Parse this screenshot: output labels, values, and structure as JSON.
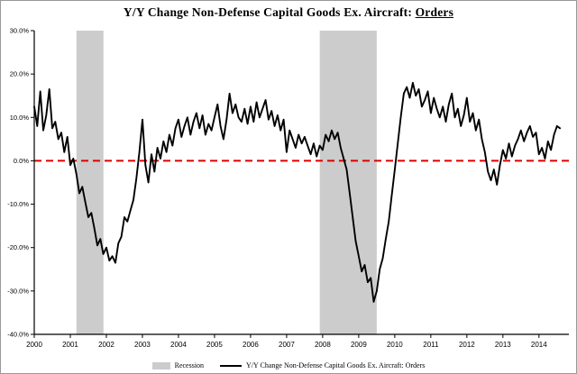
{
  "title": {
    "main": "Y/Y Change Non-Defense Capital Goods Ex. Aircraft: ",
    "underlined": "Orders"
  },
  "legend": {
    "recession_label": "Recession",
    "series_label": "Y/Y Change Non-Defense Capital Goods Ex. Aircraft: Orders"
  },
  "chart_data": {
    "type": "line",
    "title": "Y/Y Change Non-Defense Capital Goods Ex. Aircraft: Orders",
    "xlabel": "",
    "ylabel": "",
    "x_start_year": 2000,
    "x_step_months": 1,
    "values": [
      12.5,
      8.0,
      16.0,
      7.0,
      10.5,
      16.5,
      7.5,
      9.0,
      5.0,
      6.5,
      2.0,
      5.5,
      -1.0,
      0.5,
      -3.0,
      -7.5,
      -6.0,
      -9.5,
      -13.0,
      -12.0,
      -15.5,
      -19.5,
      -18.0,
      -21.5,
      -20.0,
      -23.0,
      -22.0,
      -23.5,
      -19.0,
      -17.5,
      -13.0,
      -14.0,
      -11.5,
      -9.0,
      -4.0,
      2.0,
      9.5,
      -1.0,
      -5.0,
      1.5,
      -2.5,
      3.0,
      0.5,
      4.5,
      2.0,
      6.0,
      3.5,
      7.5,
      9.5,
      5.5,
      8.0,
      10.0,
      6.0,
      9.0,
      11.0,
      7.5,
      10.5,
      6.0,
      8.5,
      7.0,
      10.0,
      13.0,
      8.0,
      5.0,
      9.5,
      15.5,
      11.0,
      13.0,
      10.0,
      9.0,
      12.0,
      8.5,
      12.5,
      9.0,
      13.5,
      10.0,
      12.0,
      14.0,
      9.5,
      11.5,
      8.0,
      10.5,
      7.0,
      9.5,
      2.0,
      7.0,
      5.0,
      3.0,
      6.0,
      4.0,
      5.5,
      3.5,
      1.5,
      4.0,
      1.0,
      3.5,
      2.5,
      6.0,
      4.5,
      7.0,
      5.0,
      6.5,
      3.0,
      0.5,
      -2.0,
      -7.5,
      -13.0,
      -18.5,
      -22.0,
      -25.5,
      -24.0,
      -28.0,
      -27.0,
      -32.5,
      -30.0,
      -25.0,
      -22.5,
      -18.0,
      -14.0,
      -8.0,
      -2.0,
      4.0,
      10.0,
      15.5,
      17.0,
      14.5,
      18.0,
      15.0,
      16.5,
      12.5,
      14.0,
      16.0,
      11.0,
      14.5,
      12.0,
      10.0,
      12.5,
      9.0,
      13.0,
      15.5,
      10.0,
      12.0,
      8.0,
      10.5,
      14.5,
      9.0,
      11.0,
      7.0,
      9.5,
      5.0,
      2.0,
      -2.5,
      -4.5,
      -2.0,
      -5.5,
      -1.0,
      2.5,
      0.5,
      4.0,
      1.0,
      3.5,
      5.0,
      7.0,
      4.5,
      6.5,
      8.0,
      5.5,
      6.5,
      1.5,
      3.0,
      0.5,
      4.5,
      2.5,
      6.0,
      8.0,
      7.5
    ],
    "ylim": [
      -40,
      30
    ],
    "xlim": [
      2000,
      2014.83
    ],
    "y_ticks": [
      30,
      20,
      10,
      0,
      -10,
      -20,
      -30,
      -40
    ],
    "x_ticks": [
      2000,
      2001,
      2002,
      2003,
      2004,
      2005,
      2006,
      2007,
      2008,
      2009,
      2010,
      2011,
      2012,
      2013,
      2014
    ],
    "grid": false,
    "zero_line_color": "#dd0000",
    "line_color": "#000000",
    "recession_color": "#cccccc",
    "recessions": [
      [
        2001.17,
        2001.92
      ],
      [
        2007.92,
        2009.5
      ]
    ],
    "legend_entries": [
      {
        "label": "Recession",
        "type": "patch"
      },
      {
        "label": "Y/Y Change Non-Defense Capital Goods Ex. Aircraft: Orders",
        "type": "line"
      }
    ],
    "legend_position": "bottom-center"
  }
}
